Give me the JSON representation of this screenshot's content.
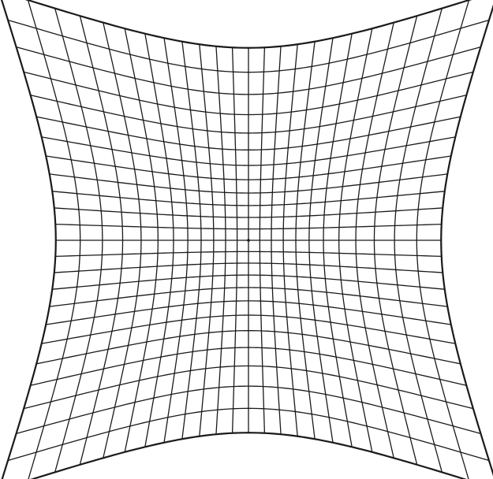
{
  "figure": {
    "type": "pincushion-distorted-grid",
    "grid_divisions": 24,
    "colors": {
      "background": "#ffffff",
      "line": "#1a1a1a"
    }
  }
}
